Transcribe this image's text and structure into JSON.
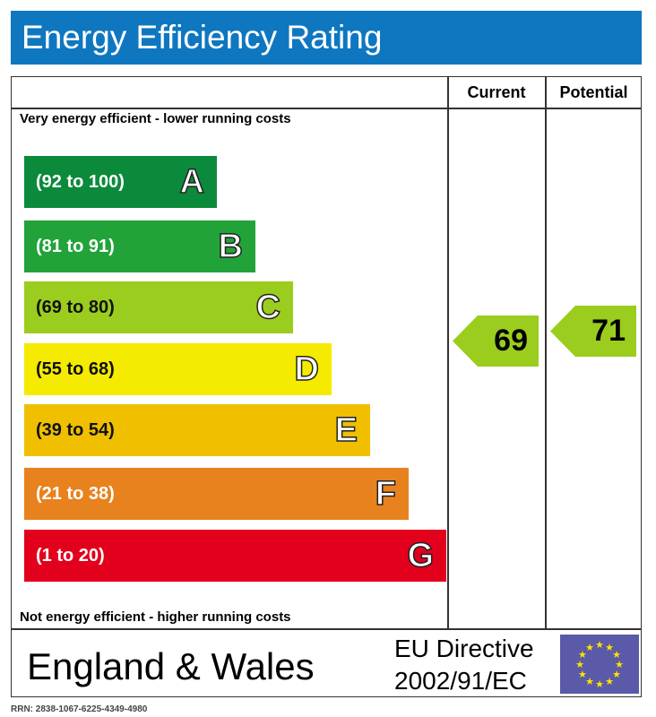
{
  "title": "Energy Efficiency Rating",
  "columns": {
    "current": "Current",
    "potential": "Potential"
  },
  "top_note": "Very energy efficient - lower running costs",
  "bottom_note": "Not energy efficient - higher running costs",
  "chart_data": {
    "type": "bar",
    "title": "Energy Efficiency Rating",
    "bands": [
      {
        "range": "(92 to 100)",
        "letter": "A",
        "color": "#0c8a3c",
        "min": 92,
        "max": 100
      },
      {
        "range": "(81 to 91)",
        "letter": "B",
        "color": "#22a33a",
        "min": 81,
        "max": 91
      },
      {
        "range": "(69 to 80)",
        "letter": "C",
        "color": "#9bcd1e",
        "min": 69,
        "max": 80
      },
      {
        "range": "(55 to 68)",
        "letter": "D",
        "color": "#f4eb00",
        "min": 55,
        "max": 68
      },
      {
        "range": "(39 to 54)",
        "letter": "E",
        "color": "#efbf00",
        "min": 39,
        "max": 54
      },
      {
        "range": "(21 to 38)",
        "letter": "F",
        "color": "#e8821e",
        "min": 21,
        "max": 38
      },
      {
        "range": "(1 to 20)",
        "letter": "G",
        "color": "#e2001c",
        "min": 1,
        "max": 20
      }
    ],
    "current": {
      "value": 69,
      "color": "#9bcd1e"
    },
    "potential": {
      "value": 71,
      "color": "#9bcd1e"
    }
  },
  "footer": {
    "region": "England & Wales",
    "directive_line1": "EU Directive",
    "directive_line2": "2002/91/EC",
    "flag_icon": "eu-flag-icon"
  },
  "rrn": "RRN: 2838-1067-6225-4349-4980"
}
